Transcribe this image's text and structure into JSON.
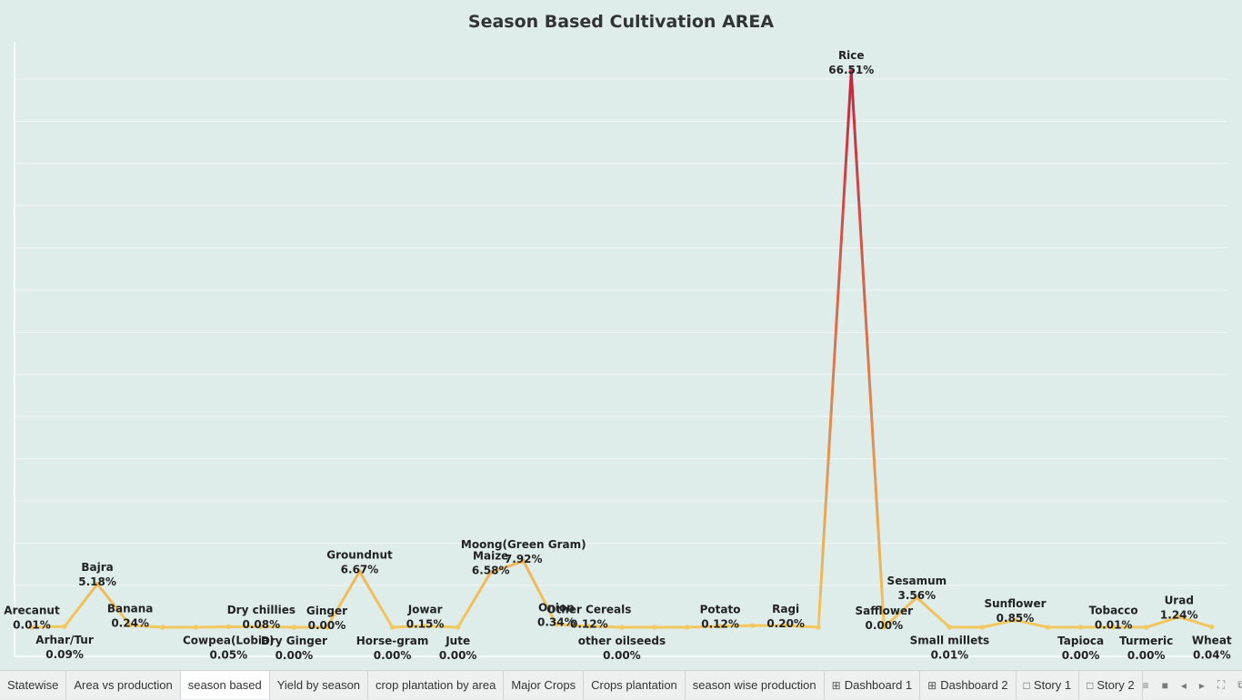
{
  "chart_data": {
    "type": "line",
    "title": "Season Based Cultivation AREA",
    "xlabel": "",
    "ylabel": "",
    "ylim": [
      0,
      70
    ],
    "grid": true,
    "points": [
      {
        "label": "Arecanut",
        "pct": 0.01,
        "show": true,
        "pos": "above"
      },
      {
        "label": "Arhar/Tur",
        "pct": 0.09,
        "show": true,
        "pos": "below"
      },
      {
        "label": "Bajra",
        "pct": 5.18,
        "show": true,
        "pos": "above"
      },
      {
        "label": "Banana",
        "pct": 0.24,
        "show": true,
        "pos": "above"
      },
      {
        "label": "",
        "pct": 0.0,
        "show": false,
        "pos": "above"
      },
      {
        "label": "",
        "pct": 0.0,
        "show": false,
        "pos": "above"
      },
      {
        "label": "Cowpea(Lobia)",
        "pct": 0.05,
        "show": true,
        "pos": "below"
      },
      {
        "label": "Dry chillies",
        "pct": 0.08,
        "show": true,
        "pos": "above"
      },
      {
        "label": "Dry Ginger",
        "pct": 0.0,
        "show": true,
        "pos": "below"
      },
      {
        "label": "Ginger",
        "pct": 0.0,
        "show": true,
        "pos": "above"
      },
      {
        "label": "Groundnut",
        "pct": 6.67,
        "show": true,
        "pos": "above"
      },
      {
        "label": "Horse-gram",
        "pct": 0.0,
        "show": true,
        "pos": "below"
      },
      {
        "label": "Jowar",
        "pct": 0.15,
        "show": true,
        "pos": "above"
      },
      {
        "label": "Jute",
        "pct": 0.0,
        "show": true,
        "pos": "below"
      },
      {
        "label": "Maize",
        "pct": 6.58,
        "show": true,
        "pos": "above"
      },
      {
        "label": "Moong(Green Gram)",
        "pct": 7.92,
        "show": true,
        "pos": "above"
      },
      {
        "label": "Onion",
        "pct": 0.34,
        "show": true,
        "pos": "above"
      },
      {
        "label": "Other Cereals",
        "pct": 0.12,
        "show": true,
        "pos": "above"
      },
      {
        "label": "other oilseeds",
        "pct": 0.0,
        "show": true,
        "pos": "below"
      },
      {
        "label": "",
        "pct": 0.0,
        "show": false,
        "pos": "above"
      },
      {
        "label": "",
        "pct": 0.0,
        "show": false,
        "pos": "above"
      },
      {
        "label": "Potato",
        "pct": 0.12,
        "show": true,
        "pos": "above"
      },
      {
        "label": "",
        "pct": 0.2,
        "show": false,
        "pos": "above"
      },
      {
        "label": "Ragi",
        "pct": 0.2,
        "show": true,
        "pos": "above"
      },
      {
        "label": "",
        "pct": 0.0,
        "show": false,
        "pos": "above"
      },
      {
        "label": "Rice",
        "pct": 66.51,
        "show": true,
        "pos": "above"
      },
      {
        "label": "Safflower",
        "pct": 0.0,
        "show": true,
        "pos": "above"
      },
      {
        "label": "Sesamum",
        "pct": 3.56,
        "show": true,
        "pos": "above"
      },
      {
        "label": "Small millets",
        "pct": 0.01,
        "show": true,
        "pos": "below"
      },
      {
        "label": "",
        "pct": 0.0,
        "show": false,
        "pos": "above"
      },
      {
        "label": "Sunflower",
        "pct": 0.85,
        "show": true,
        "pos": "above"
      },
      {
        "label": "",
        "pct": 0.0,
        "show": false,
        "pos": "above"
      },
      {
        "label": "Tapioca",
        "pct": 0.0,
        "show": true,
        "pos": "below"
      },
      {
        "label": "Tobacco",
        "pct": 0.01,
        "show": true,
        "pos": "above"
      },
      {
        "label": "Turmeric",
        "pct": 0.0,
        "show": true,
        "pos": "below"
      },
      {
        "label": "Urad",
        "pct": 1.24,
        "show": true,
        "pos": "above"
      },
      {
        "label": "Wheat",
        "pct": 0.04,
        "show": true,
        "pos": "below"
      }
    ],
    "color_low": "#f2c75c",
    "color_high": "#c4243e"
  },
  "tabs": [
    {
      "label": "Statewise",
      "icon": "",
      "active": false
    },
    {
      "label": "Area vs production",
      "icon": "",
      "active": false
    },
    {
      "label": "season based",
      "icon": "",
      "active": true
    },
    {
      "label": "Yield by season",
      "icon": "",
      "active": false
    },
    {
      "label": "crop plantation by area",
      "icon": "",
      "active": false
    },
    {
      "label": "Major Crops",
      "icon": "",
      "active": false
    },
    {
      "label": "Crops plantation",
      "icon": "",
      "active": false
    },
    {
      "label": "season wise production",
      "icon": "",
      "active": false
    },
    {
      "label": "Dashboard 1",
      "icon": "dashboard-icon",
      "active": false
    },
    {
      "label": "Dashboard 2",
      "icon": "dashboard-icon",
      "active": false
    },
    {
      "label": "Story 1",
      "icon": "story-icon",
      "active": false
    },
    {
      "label": "Story 2",
      "icon": "story-icon",
      "active": false
    }
  ]
}
